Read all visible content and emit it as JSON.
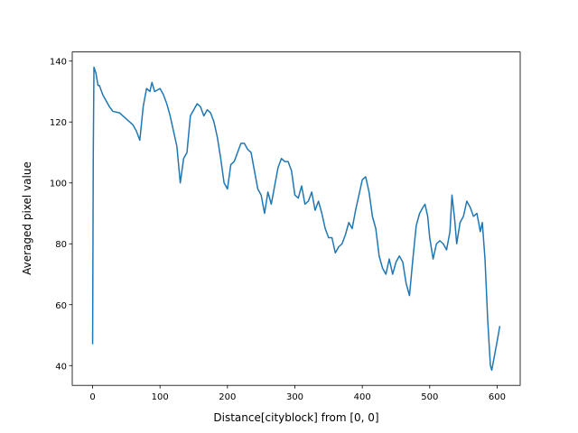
{
  "chart_data": {
    "type": "line",
    "xlabel": "Distance[cityblock] from [0, 0]",
    "ylabel": "Averaged pixel value",
    "color": "#1f77b4",
    "x": [
      0,
      1,
      2,
      5,
      8,
      10,
      15,
      20,
      25,
      30,
      40,
      50,
      60,
      65,
      70,
      75,
      80,
      85,
      88,
      92,
      100,
      105,
      110,
      115,
      120,
      125,
      130,
      135,
      140,
      145,
      150,
      155,
      160,
      165,
      170,
      175,
      180,
      185,
      190,
      195,
      200,
      205,
      210,
      215,
      220,
      225,
      230,
      235,
      240,
      245,
      250,
      255,
      260,
      265,
      270,
      275,
      280,
      285,
      290,
      295,
      300,
      305,
      310,
      315,
      320,
      325,
      330,
      335,
      340,
      345,
      350,
      355,
      360,
      365,
      370,
      375,
      380,
      385,
      390,
      395,
      400,
      405,
      410,
      415,
      420,
      425,
      430,
      435,
      440,
      445,
      450,
      455,
      460,
      465,
      470,
      475,
      480,
      485,
      490,
      493,
      497,
      500,
      505,
      510,
      515,
      520,
      525,
      530,
      533,
      537,
      540,
      545,
      550,
      555,
      560,
      565,
      570,
      575,
      578,
      582,
      586,
      590,
      592,
      595,
      600,
      604
    ],
    "values": [
      47,
      110,
      138,
      136,
      132,
      132,
      129,
      127,
      125,
      123.5,
      123,
      121,
      119,
      117,
      114,
      125,
      131,
      130,
      133,
      130,
      131,
      129,
      126,
      122,
      117,
      112,
      100,
      108,
      110,
      122,
      124,
      126,
      125,
      122,
      124,
      123,
      120,
      115,
      108,
      100,
      98,
      106,
      107,
      110,
      113,
      113,
      111,
      110,
      104,
      98,
      96,
      90,
      97,
      93,
      99,
      105,
      108,
      107,
      107,
      104,
      96,
      95,
      99,
      93,
      94,
      97,
      91,
      94,
      90,
      85,
      82,
      82,
      77,
      79,
      80,
      83,
      87,
      85,
      91,
      96,
      101,
      102,
      97,
      89,
      85,
      76,
      72,
      70,
      75,
      70,
      74,
      76,
      74,
      67,
      63,
      75,
      86,
      90,
      92,
      93,
      89,
      82,
      75,
      80,
      81,
      80,
      78,
      84,
      96,
      88,
      80,
      87,
      89,
      94,
      92,
      89,
      90,
      84,
      87,
      75,
      55,
      40,
      38.5,
      42,
      48,
      53
    ],
    "xlim": [
      -30.2,
      634.2
    ],
    "ylim": [
      33.5,
      143
    ],
    "xticks": [
      0,
      100,
      200,
      300,
      400,
      500,
      600
    ],
    "yticks": [
      40,
      60,
      80,
      100,
      120,
      140
    ]
  }
}
